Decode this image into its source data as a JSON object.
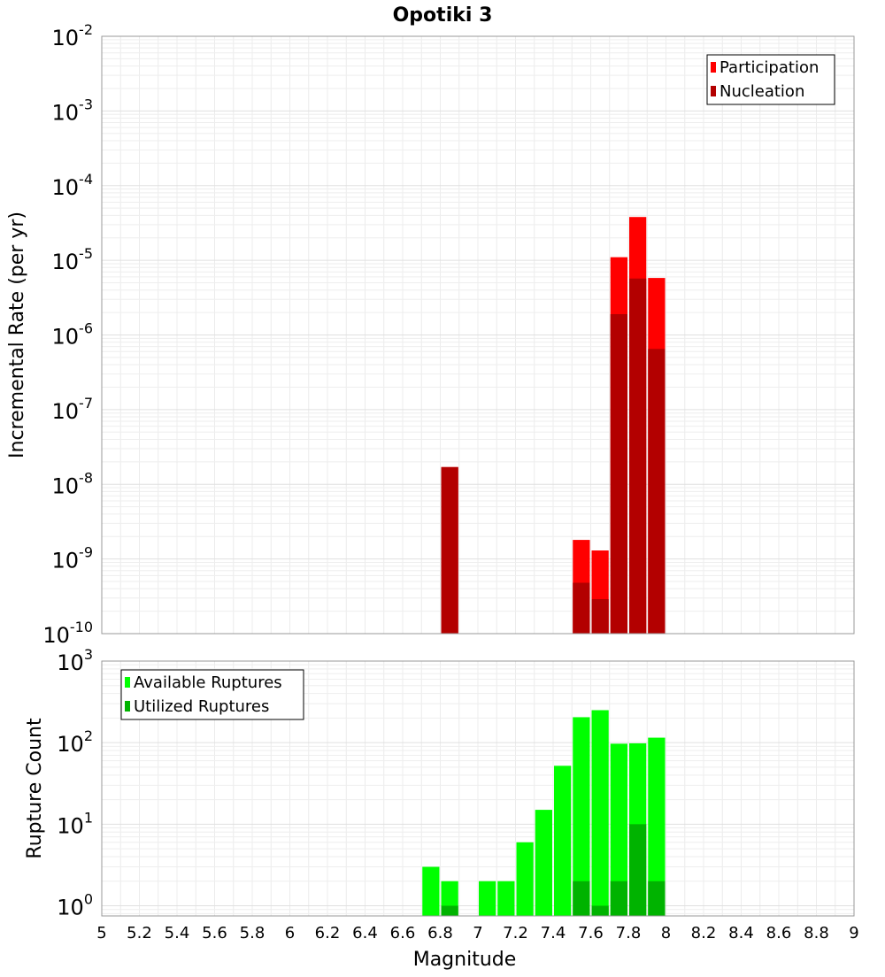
{
  "chart_data": [
    {
      "type": "bar",
      "title": "Opotiki 3",
      "xlabel": "",
      "ylabel": "Incremental Rate (per yr)",
      "yscale": "log",
      "xlim": [
        5,
        9
      ],
      "ylim": [
        1e-10,
        0.01
      ],
      "y_tick_exponents": [
        -2,
        -3,
        -4,
        -5,
        -6,
        -7,
        -8,
        -9,
        -10
      ],
      "bin_width": 0.1,
      "grid": true,
      "legend_position": "top-right",
      "series": [
        {
          "name": "Participation",
          "color": "#ff0000",
          "x": [
            6.85,
            7.55,
            7.65,
            7.75,
            7.85,
            7.95
          ],
          "values": [
            1.7e-08,
            1.8e-09,
            1.3e-09,
            1.1e-05,
            3.8e-05,
            5.8e-06
          ]
        },
        {
          "name": "Nucleation",
          "color": "#b30000",
          "x": [
            6.85,
            7.55,
            7.65,
            7.75,
            7.85,
            7.95
          ],
          "values": [
            1.7e-08,
            4.8e-10,
            2.9e-10,
            1.9e-06,
            5.7e-06,
            6.5e-07
          ]
        }
      ]
    },
    {
      "type": "bar",
      "title": "",
      "xlabel": "Magnitude",
      "ylabel": "Rupture Count",
      "yscale": "log",
      "xlim": [
        5,
        9
      ],
      "ylim": [
        0.75,
        1000
      ],
      "y_tick_exponents": [
        3,
        2,
        1,
        0
      ],
      "x_ticks": [
        "5",
        "5.2",
        "5.4",
        "5.6",
        "5.8",
        "6",
        "6.2",
        "6.4",
        "6.6",
        "6.8",
        "7",
        "7.2",
        "7.4",
        "7.6",
        "7.8",
        "8",
        "8.2",
        "8.4",
        "8.6",
        "8.8",
        "9"
      ],
      "bin_width": 0.1,
      "grid": true,
      "legend_position": "top-left",
      "series": [
        {
          "name": "Available Ruptures",
          "color": "#00ff00",
          "x": [
            6.75,
            6.85,
            7.05,
            7.15,
            7.25,
            7.35,
            7.45,
            7.55,
            7.65,
            7.75,
            7.85,
            7.95
          ],
          "values": [
            3,
            2,
            2,
            2,
            6,
            15,
            52,
            205,
            250,
            97,
            98,
            115
          ]
        },
        {
          "name": "Utilized Ruptures",
          "color": "#00b300",
          "x": [
            6.85,
            7.55,
            7.65,
            7.75,
            7.85,
            7.95
          ],
          "values": [
            1,
            2,
            1,
            2,
            10,
            2
          ]
        }
      ]
    }
  ]
}
